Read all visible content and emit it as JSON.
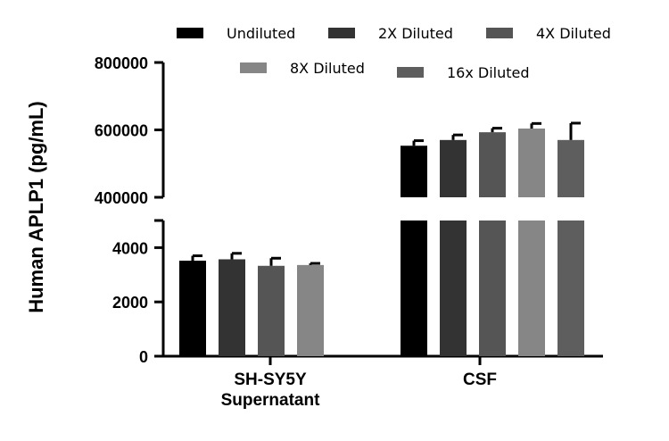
{
  "chart_data": {
    "type": "bar",
    "ylabel": "Human APLP1 (pg/mL)",
    "categories": [
      "SH-SY5Y Supernatant",
      "CSF"
    ],
    "category_lines": [
      [
        "SH-SY5Y",
        "Supernatant"
      ],
      [
        "CSF"
      ]
    ],
    "axis_break": {
      "lower_range": [
        0,
        5000
      ],
      "upper_range": [
        400000,
        800000
      ],
      "lower_ticks": [
        "0",
        "2000",
        "4000"
      ],
      "upper_ticks": [
        "400000",
        "600000",
        "800000"
      ]
    },
    "legend_placement": "top",
    "series": [
      {
        "name": "Undiluted",
        "color": "#000000",
        "values": [
          3520,
          553000
        ],
        "errors": [
          180,
          15000
        ]
      },
      {
        "name": "2X Diluted",
        "color": "#333333",
        "values": [
          3570,
          570000
        ],
        "errors": [
          220,
          15000
        ]
      },
      {
        "name": "4X Diluted",
        "color": "#555555",
        "values": [
          3330,
          593000
        ],
        "errors": [
          280,
          12000
        ]
      },
      {
        "name": "8X Diluted",
        "color": "#868686",
        "values": [
          3360,
          604000
        ],
        "errors": [
          60,
          15000
        ]
      },
      {
        "name": "16x Diluted",
        "color": "#5e5e5e",
        "values": [
          null,
          570000
        ],
        "errors": [
          null,
          50000
        ]
      }
    ]
  }
}
